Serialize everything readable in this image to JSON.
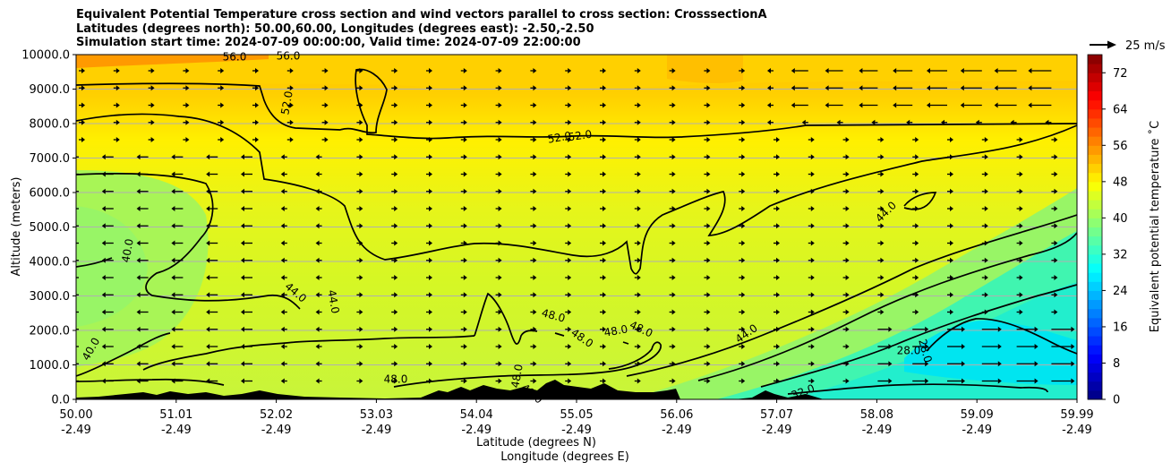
{
  "chart_data": {
    "type": "heatmap",
    "title_lines": [
      "Equivalent Potential Temperature cross section and wind vectors parallel to cross section: CrosssectionA",
      "Latitudes (degrees north): 50.00,60.00, Longitudes (degrees east): -2.50,-2.50",
      "Simulation start time: 2024-07-09 00:00:00, Valid time: 2024-07-09 22:00:00"
    ],
    "xlabel_lines": [
      "Latitude (degrees N)",
      "Longitude (degrees E)"
    ],
    "ylabel": "Altitude (meters)",
    "x_range": [
      50.0,
      59.99
    ],
    "ylim": [
      0,
      10000
    ],
    "x_ticks": [
      {
        "lat": "50.00",
        "lon": "-2.49"
      },
      {
        "lat": "51.01",
        "lon": "-2.49"
      },
      {
        "lat": "52.02",
        "lon": "-2.49"
      },
      {
        "lat": "53.03",
        "lon": "-2.49"
      },
      {
        "lat": "54.04",
        "lon": "-2.49"
      },
      {
        "lat": "55.05",
        "lon": "-2.49"
      },
      {
        "lat": "56.06",
        "lon": "-2.49"
      },
      {
        "lat": "57.07",
        "lon": "-2.49"
      },
      {
        "lat": "58.08",
        "lon": "-2.49"
      },
      {
        "lat": "59.09",
        "lon": "-2.49"
      },
      {
        "lat": "59.99",
        "lon": "-2.49"
      }
    ],
    "y_ticks": [
      "0.0",
      "1000.0",
      "2000.0",
      "3000.0",
      "4000.0",
      "5000.0",
      "6000.0",
      "7000.0",
      "8000.0",
      "9000.0",
      "10000.0"
    ],
    "grid": true,
    "colorbar": {
      "label": "Equivalent potential temperature $^\\circ$C",
      "label_text": "Equivalent potential temperature ˚C",
      "min": 0,
      "max": 76,
      "step": 2,
      "ticks": [
        "0",
        "8",
        "16",
        "24",
        "32",
        "40",
        "48",
        "56",
        "64",
        "72"
      ]
    },
    "quiver_key": {
      "label": "25 m/s",
      "value_ms": 25
    },
    "contour_labels": [
      "56.0",
      "56.0",
      "52.0",
      "52.0",
      "52.0",
      "44.0",
      "40.0",
      "44.0",
      "44.0",
      "40.0",
      "48.0",
      "48.0",
      "48.0",
      "48.0",
      "48.0",
      "48.0",
      "44.0",
      "28.0",
      "28.0",
      "32.0",
      "48.0"
    ],
    "field_regions": [
      {
        "altitude_m": [
          8500,
          10000
        ],
        "lat_range": [
          50.0,
          59.99
        ],
        "theta_e_C": 54
      },
      {
        "altitude_m": [
          7000,
          8500
        ],
        "lat_range": [
          50.0,
          59.99
        ],
        "theta_e_C": 50
      },
      {
        "altitude_m": [
          3500,
          7000
        ],
        "lat_range": [
          51.5,
          57.0
        ],
        "theta_e_C": 47
      },
      {
        "altitude_m": [
          500,
          6500
        ],
        "lat_range": [
          50.0,
          51.5
        ],
        "theta_e_C": 42
      },
      {
        "altitude_m": [
          0,
          3000
        ],
        "lat_range": [
          52.5,
          56.0
        ],
        "theta_e_C": 47
      },
      {
        "altitude_m": [
          0,
          2500
        ],
        "lat_range": [
          58.0,
          59.99
        ],
        "theta_e_C": 28
      }
    ]
  }
}
